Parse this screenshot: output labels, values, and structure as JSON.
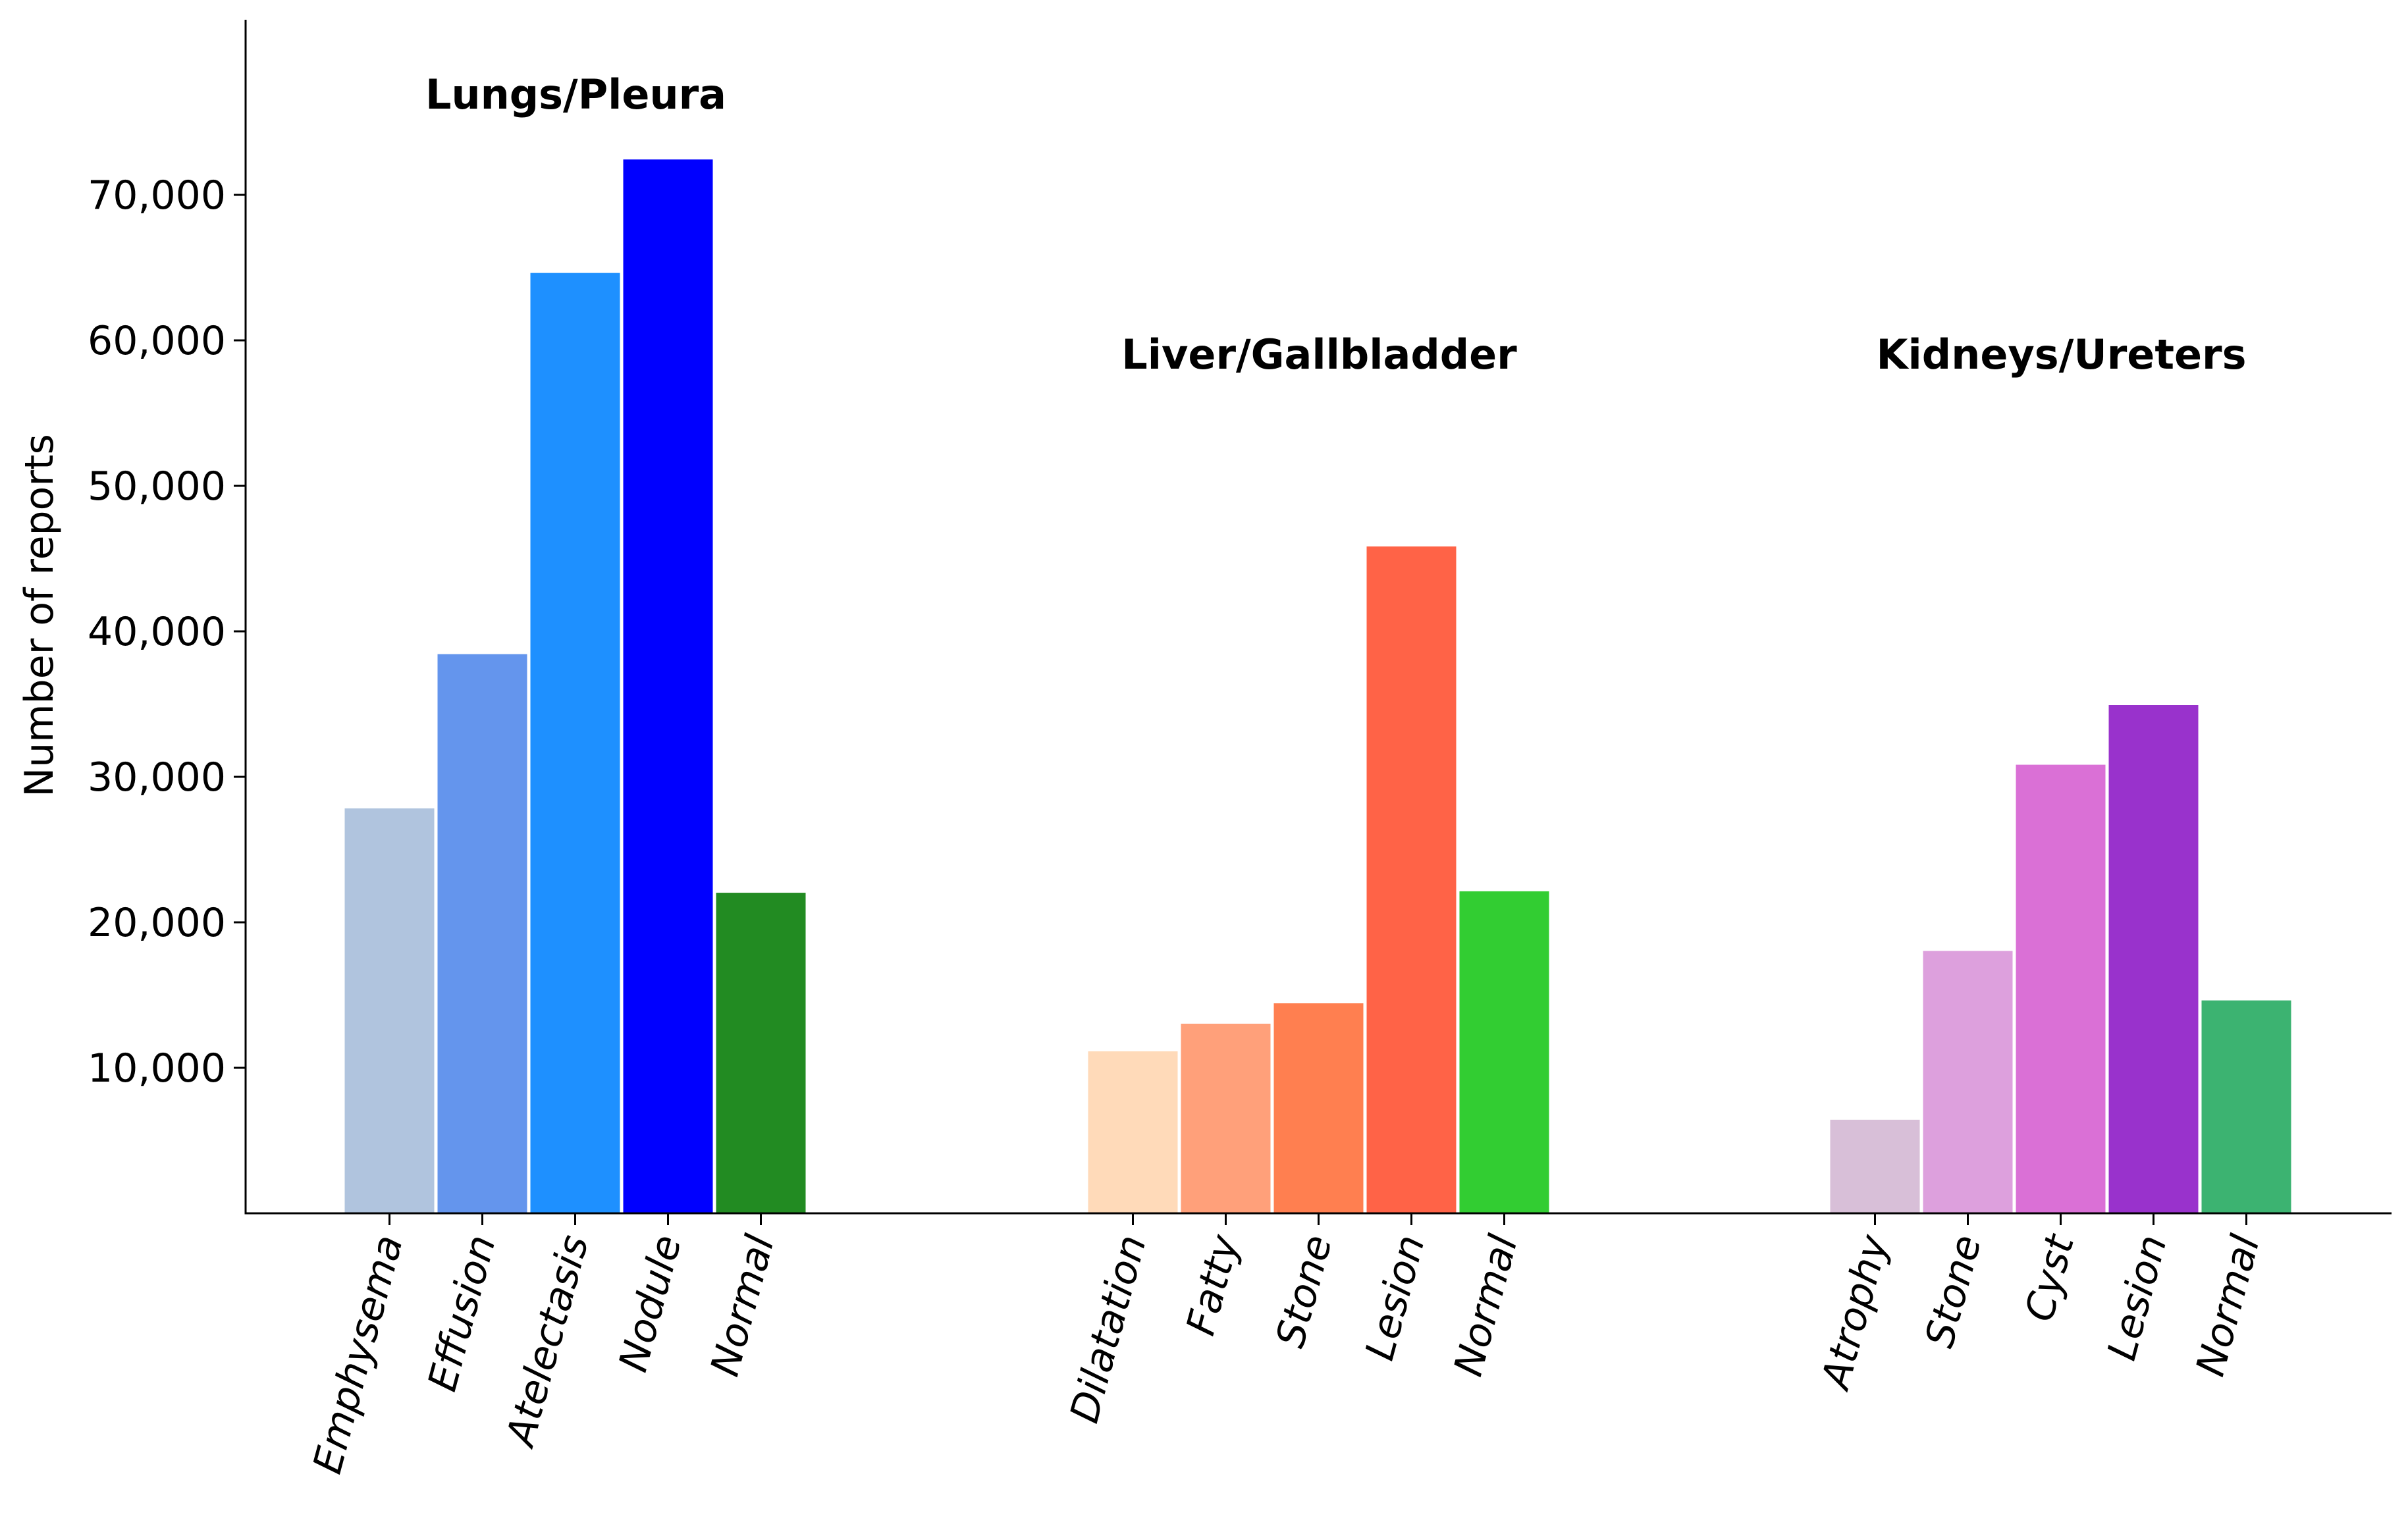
{
  "chart_data": {
    "type": "bar",
    "ylabel": "Number of reports",
    "xlabel": "",
    "ylim": [
      0,
      82000
    ],
    "yticks": [
      10000,
      20000,
      30000,
      40000,
      50000,
      60000,
      70000
    ],
    "ytick_labels": [
      "10,000",
      "20,000",
      "30,000",
      "40,000",
      "50,000",
      "60,000",
      "70,000"
    ],
    "grid": false,
    "groups": [
      {
        "title": "Lungs/Pleura",
        "categories": [
          "Emphysema",
          "Effusion",
          "Atelectasis",
          "Nodule",
          "Normal"
        ],
        "values": [
          27900,
          38500,
          64700,
          72500,
          22100
        ],
        "colors": [
          "#b0c4de",
          "#6495ed",
          "#1e90ff",
          "#0000ff",
          "#228b22"
        ]
      },
      {
        "title": "Liver/Gallbladder",
        "categories": [
          "Dilatation",
          "Fatty",
          "Stone",
          "Lesion",
          "Normal"
        ],
        "values": [
          11200,
          13100,
          14500,
          45900,
          22200
        ],
        "colors": [
          "#ffdab9",
          "#ffa07a",
          "#ff7f50",
          "#ff6347",
          "#32cd32"
        ]
      },
      {
        "title": "Kidneys/Ureters",
        "categories": [
          "Atrophy",
          "Stone",
          "Cyst",
          "Lesion",
          "Normal"
        ],
        "values": [
          6500,
          18100,
          30900,
          35000,
          14700
        ],
        "colors": [
          "#d8bfd8",
          "#dda0dd",
          "#da70d6",
          "#9932cc",
          "#3cb371"
        ]
      }
    ]
  }
}
